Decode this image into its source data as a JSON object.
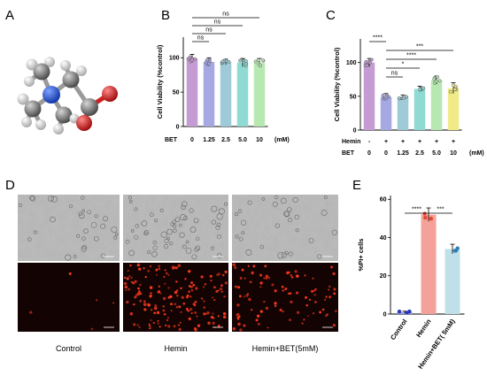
{
  "panels": {
    "A": {
      "letter": "A"
    },
    "B": {
      "letter": "B"
    },
    "C": {
      "letter": "C"
    },
    "D": {
      "letter": "D"
    },
    "E": {
      "letter": "E"
    }
  },
  "colors": {
    "carbon": "#6e6e6e",
    "nitrogen": "#1f4fd6",
    "oxygen": "#d91a1a",
    "hydrogen": "#e6e6e6",
    "fluor_bg": "#140303",
    "fluor_dot": "#ff3b1f"
  },
  "chart_data": [
    {
      "id": "B",
      "type": "bar",
      "ylabel": "Cell Viability (%control)",
      "yticks": [
        0,
        50,
        100
      ],
      "ylim": [
        0,
        130
      ],
      "x_row_label": "BET",
      "unit": "(mM)",
      "categories": [
        "0",
        "1.25",
        "2.5",
        "5.0",
        "10"
      ],
      "values": [
        99,
        94,
        94,
        93,
        93
      ],
      "errors": [
        6,
        6,
        4,
        6,
        6
      ],
      "colors": [
        "#c59bd3",
        "#a6a8e2",
        "#9ecbd7",
        "#8fdad2",
        "#b7e8b2"
      ],
      "significance": [
        {
          "from": 0,
          "to": 1,
          "label": "ns",
          "level": 1
        },
        {
          "from": 0,
          "to": 2,
          "label": "ns",
          "level": 2
        },
        {
          "from": 0,
          "to": 3,
          "label": "ns",
          "level": 3
        },
        {
          "from": 0,
          "to": 4,
          "label": "ns",
          "level": 4
        }
      ]
    },
    {
      "id": "C",
      "type": "bar",
      "ylabel": "Cell Viability (%control)",
      "yticks": [
        0,
        50,
        100
      ],
      "ylim": [
        0,
        135
      ],
      "x_rows": [
        {
          "label": "Hemin",
          "values": [
            "-",
            "+",
            "+",
            "+",
            "+",
            "+"
          ]
        },
        {
          "label": "BET",
          "values": [
            "0",
            "0",
            "1.25",
            "2.5",
            "5.0",
            "10"
          ]
        }
      ],
      "unit": "(mM)",
      "categories": [
        "0",
        "0",
        "1.25",
        "2.5",
        "5.0",
        "10"
      ],
      "values": [
        100,
        49,
        49,
        61,
        74,
        62
      ],
      "errors": [
        6,
        5,
        3,
        4,
        6,
        8
      ],
      "colors": [
        "#c59bd3",
        "#a6a8e2",
        "#9ecbd7",
        "#8fdad2",
        "#b7e8b2",
        "#f0eb86"
      ],
      "significance": [
        {
          "from": 0,
          "to": 1,
          "label": "****",
          "level": 5
        },
        {
          "from": 1,
          "to": 2,
          "label": "ns",
          "level": 1
        },
        {
          "from": 1,
          "to": 3,
          "label": "*",
          "level": 2
        },
        {
          "from": 1,
          "to": 4,
          "label": "****",
          "level": 3
        },
        {
          "from": 1,
          "to": 5,
          "label": "***",
          "level": 4
        }
      ]
    },
    {
      "id": "E",
      "type": "bar",
      "ylabel": "%PI+ cells",
      "yticks": [
        0,
        20,
        40,
        60
      ],
      "ylim": [
        0,
        62
      ],
      "categories": [
        "Control",
        "Hemin",
        "Hemin+BET( 5mM)"
      ],
      "values": [
        1,
        52,
        34
      ],
      "errors": [
        0.5,
        3.5,
        2.5
      ],
      "colors": [
        "#9aa0e0",
        "#f4a19a",
        "#bfe0e8"
      ],
      "significance": [
        {
          "from": 0,
          "to": 1,
          "label": "****",
          "level": 1
        },
        {
          "from": 1,
          "to": 2,
          "label": "***",
          "level": 1
        }
      ]
    }
  ],
  "micrographs": {
    "captions": [
      "Control",
      "Hemin",
      "Hemin+BET(5mM)"
    ],
    "dot_density": [
      0.03,
      1.0,
      0.55
    ]
  }
}
